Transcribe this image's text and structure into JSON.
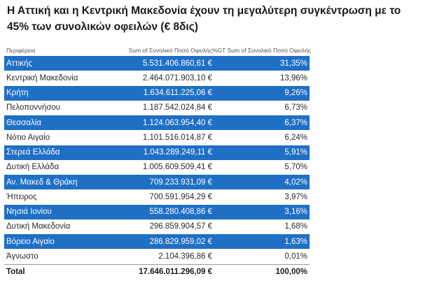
{
  "title": "Η Αττική και η Κεντρική Μακεδονία έχουν τη μεγαλύτερη συγκέντρωση με το 45% των συνολικών οφειλών (€ 8δις)",
  "table": {
    "columns": [
      "Περιφέρεια",
      "Sum of Συνολικό Ποσό Οφειλής",
      "%GT Sum of Συνολικό Ποσό Οφειλής"
    ],
    "highlight_color": "#1f6fc5",
    "rows": [
      {
        "region": "Αττικής",
        "amount": "5.531.406.860,61 €",
        "pct": "31,35%",
        "highlighted": true
      },
      {
        "region": "Κεντρική Μακεδονία",
        "amount": "2.464.071.903,10 €",
        "pct": "13,96%",
        "highlighted": false
      },
      {
        "region": "Κρήτη",
        "amount": "1.634.611.225,06 €",
        "pct": "9,26%",
        "highlighted": true
      },
      {
        "region": "Πελοποννήσου",
        "amount": "1.187.542.024,84 €",
        "pct": "6,73%",
        "highlighted": false
      },
      {
        "region": "Θεσσαλία",
        "amount": "1.124.063.954,40 €",
        "pct": "6,37%",
        "highlighted": true
      },
      {
        "region": "Νότιο Αιγαίο",
        "amount": "1.101.516.014,87 €",
        "pct": "6,24%",
        "highlighted": false
      },
      {
        "region": "Στερεά Ελλάδα",
        "amount": "1.043.289.249,11 €",
        "pct": "5,91%",
        "highlighted": true
      },
      {
        "region": "Δυτική Ελλάδα",
        "amount": "1.005.609.509,41 €",
        "pct": "5,70%",
        "highlighted": false
      },
      {
        "region": "Αν. Μακεδ & Θράκη",
        "amount": "709.233.931,09 €",
        "pct": "4,02%",
        "highlighted": true
      },
      {
        "region": "Ήπειρος",
        "amount": "700.591.954,29 €",
        "pct": "3,97%",
        "highlighted": false
      },
      {
        "region": "Νησιά Ιονίου",
        "amount": "558.280.408,86 €",
        "pct": "3,16%",
        "highlighted": true
      },
      {
        "region": "Δυτική Μακεδονία",
        "amount": "296.859.904,57 €",
        "pct": "1,68%",
        "highlighted": false
      },
      {
        "region": "Βόρειο Αιγαίο",
        "amount": "286.829.959,02 €",
        "pct": "1,63%",
        "highlighted": true
      },
      {
        "region": "Άγνωστο",
        "amount": "2.104.396,86 €",
        "pct": "0,01%",
        "highlighted": false
      }
    ],
    "total": {
      "label": "Total",
      "amount": "17.646.011.296,09 €",
      "pct": "100,00%"
    }
  }
}
